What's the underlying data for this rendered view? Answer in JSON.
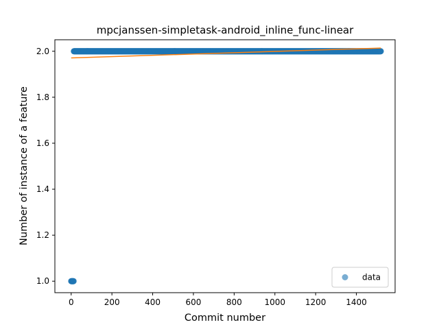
{
  "chart_data": {
    "type": "scatter",
    "title": "mpcjanssen-simpletask-android_inline_func-linear",
    "xlabel": "Commit number",
    "ylabel": "Number of instance of a feature",
    "xlim": [
      -80,
      1590
    ],
    "ylim": [
      0.95,
      2.05
    ],
    "xticks": [
      0,
      200,
      400,
      600,
      800,
      1000,
      1200,
      1400
    ],
    "yticks": [
      1.0,
      1.2,
      1.4,
      1.6,
      1.8,
      2.0
    ],
    "xtick_labels": [
      "0",
      "200",
      "400",
      "600",
      "800",
      "1000",
      "1200",
      "1400"
    ],
    "ytick_labels": [
      "1.0",
      "1.2",
      "1.4",
      "1.6",
      "1.8",
      "2.0"
    ],
    "grid": false,
    "legend": {
      "position": "lower-right",
      "entries": [
        "data"
      ]
    },
    "series": [
      {
        "name": "data",
        "kind": "points",
        "color": "#1f77b4",
        "alpha": 0.6,
        "segments": [
          {
            "x_start": 0,
            "x_end": 12,
            "y": 1.0
          },
          {
            "x_start": 13,
            "x_end": 1520,
            "y": 2.0
          }
        ]
      },
      {
        "kind": "line",
        "color": "#ff7f0e",
        "points": [
          {
            "x": 0,
            "y": 1.971
          },
          {
            "x": 1520,
            "y": 2.014
          }
        ]
      }
    ]
  }
}
